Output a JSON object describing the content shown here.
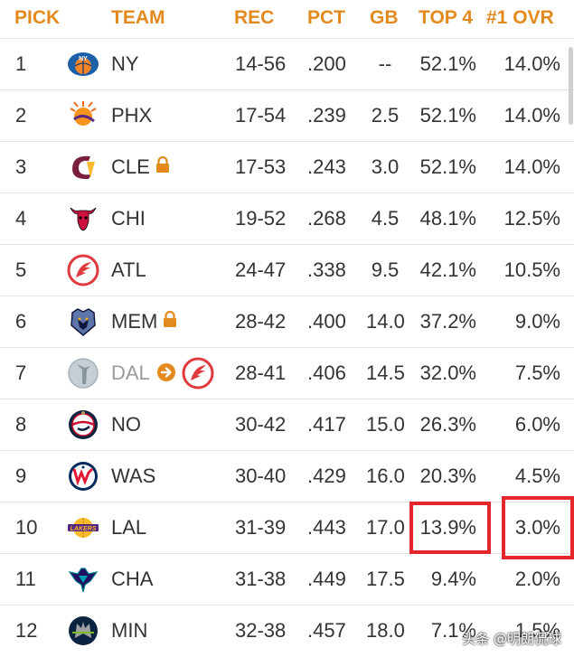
{
  "header": {
    "pick": "PICK",
    "team": "TEAM",
    "rec": "REC",
    "pct": "PCT",
    "gb": "GB",
    "top4": "TOP 4",
    "ovr": "#1 OVR"
  },
  "rows": [
    {
      "pick": "1",
      "team": "NY",
      "rec": "14-56",
      "pct": ".200",
      "gb": "--",
      "top4": "52.1%",
      "ovr": "14.0%",
      "logo": "knicks-logo"
    },
    {
      "pick": "2",
      "team": "PHX",
      "rec": "17-54",
      "pct": ".239",
      "gb": "2.5",
      "top4": "52.1%",
      "ovr": "14.0%",
      "logo": "suns-logo"
    },
    {
      "pick": "3",
      "team": "CLE",
      "rec": "17-53",
      "pct": ".243",
      "gb": "3.0",
      "top4": "52.1%",
      "ovr": "14.0%",
      "logo": "cavaliers-logo",
      "locked": true
    },
    {
      "pick": "4",
      "team": "CHI",
      "rec": "19-52",
      "pct": ".268",
      "gb": "4.5",
      "top4": "48.1%",
      "ovr": "12.5%",
      "logo": "bulls-logo"
    },
    {
      "pick": "5",
      "team": "ATL",
      "rec": "24-47",
      "pct": ".338",
      "gb": "9.5",
      "top4": "42.1%",
      "ovr": "10.5%",
      "logo": "hawks-logo"
    },
    {
      "pick": "6",
      "team": "MEM",
      "rec": "28-42",
      "pct": ".400",
      "gb": "14.0",
      "top4": "37.2%",
      "ovr": "9.0%",
      "logo": "grizzlies-logo",
      "locked": true
    },
    {
      "pick": "7",
      "team": "DAL",
      "rec": "28-41",
      "pct": ".406",
      "gb": "14.5",
      "top4": "32.0%",
      "ovr": "7.5%",
      "logo": "mavericks-logo",
      "traded_to": "hawks-logo"
    },
    {
      "pick": "8",
      "team": "NO",
      "rec": "30-42",
      "pct": ".417",
      "gb": "15.0",
      "top4": "26.3%",
      "ovr": "6.0%",
      "logo": "pelicans-logo"
    },
    {
      "pick": "9",
      "team": "WAS",
      "rec": "30-40",
      "pct": ".429",
      "gb": "16.0",
      "top4": "20.3%",
      "ovr": "4.5%",
      "logo": "wizards-logo"
    },
    {
      "pick": "10",
      "team": "LAL",
      "rec": "31-39",
      "pct": ".443",
      "gb": "17.0",
      "top4": "13.9%",
      "ovr": "3.0%",
      "logo": "lakers-logo",
      "highlighted": true
    },
    {
      "pick": "11",
      "team": "CHA",
      "rec": "31-38",
      "pct": ".449",
      "gb": "17.5",
      "top4": "9.4%",
      "ovr": "2.0%",
      "logo": "hornets-logo"
    },
    {
      "pick": "12",
      "team": "MIN",
      "rec": "32-38",
      "pct": ".457",
      "gb": "18.0",
      "top4": "7.1%",
      "ovr": "1.5%",
      "logo": "timberwolves-logo"
    }
  ],
  "colors": {
    "header": "#E38A1E",
    "highlight": "#e5262b",
    "lock": "#E38A1E"
  },
  "watermark": "头条 @明朗侃球"
}
